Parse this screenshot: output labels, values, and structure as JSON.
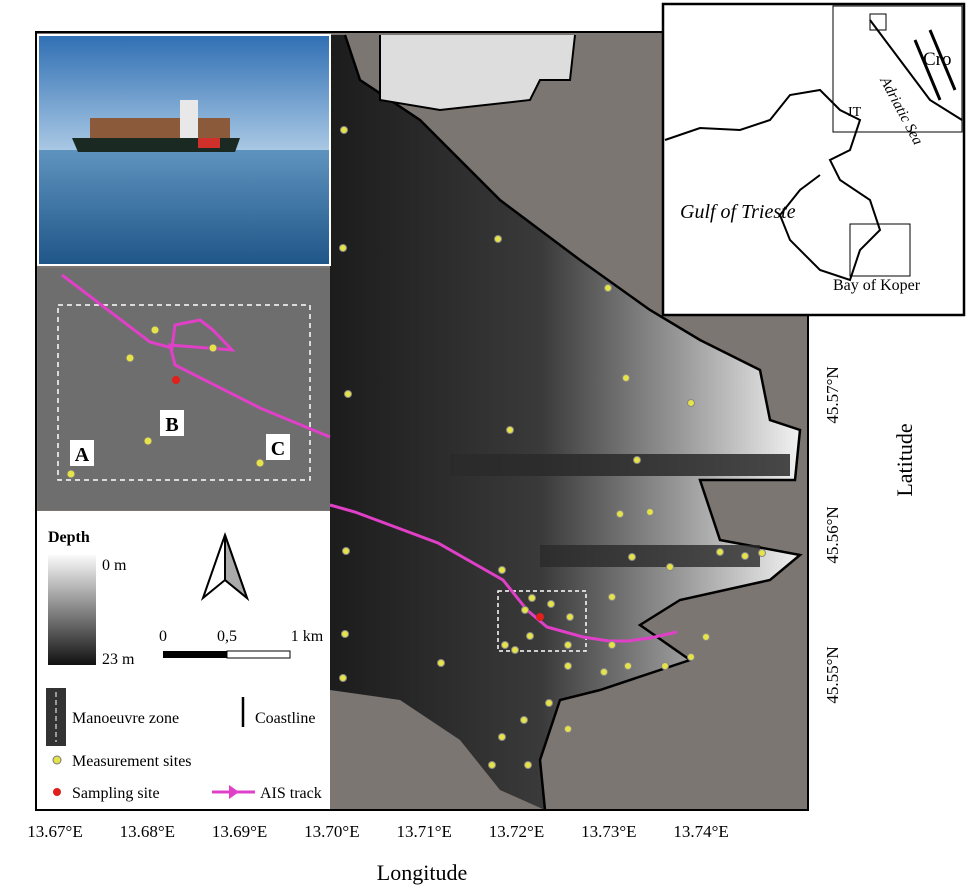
{
  "axes": {
    "x_label": "Longitude",
    "y_label": "Latitude",
    "x_ticks": [
      "13.67°E",
      "13.68°E",
      "13.69°E",
      "13.70°E",
      "13.71°E",
      "13.72°E",
      "13.73°E",
      "13.74°E"
    ],
    "y_ticks": [
      "45.57°N",
      "45.56°N",
      "45.55°N"
    ]
  },
  "legend": {
    "title": "Depth",
    "depth_min": "0 m",
    "depth_max": "23 m",
    "items": [
      "Manoeuvre zone",
      "Coastline",
      "Measurement sites",
      "Sampling site",
      "AIS track"
    ]
  },
  "scale_bar": [
    "0",
    "0,5",
    "1 km"
  ],
  "zoom_inset": {
    "labels": [
      "A",
      "B",
      "C"
    ]
  },
  "location_map": {
    "labels": [
      "Cro",
      "Adriatic Sea",
      "IT",
      "Gulf of Trieste",
      "Bay of Koper"
    ]
  }
}
